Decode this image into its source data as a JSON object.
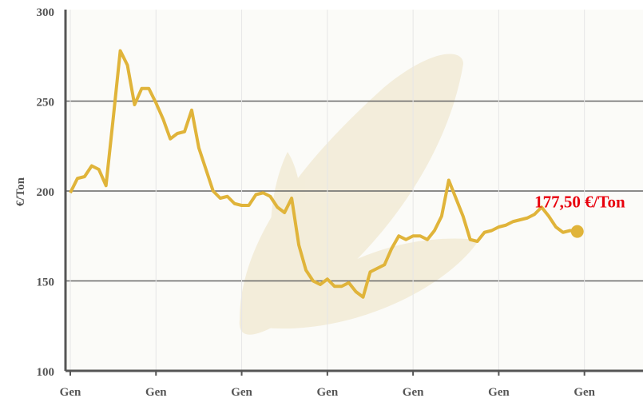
{
  "chart_data": {
    "type": "line",
    "y_label": "€/Ton",
    "annotation": "177,50 €/Ton",
    "categories": [
      "Gen",
      null,
      null,
      null,
      null,
      null,
      null,
      null,
      null,
      null,
      null,
      null,
      "Gen",
      null,
      null,
      null,
      null,
      null,
      null,
      null,
      null,
      null,
      null,
      null,
      "Gen",
      null,
      null,
      null,
      null,
      null,
      null,
      null,
      null,
      null,
      null,
      null,
      "Gen",
      null,
      null,
      null,
      null,
      null,
      null,
      null,
      null,
      null,
      null,
      null,
      "Gen",
      null,
      null,
      null,
      null,
      null,
      null,
      null,
      null,
      null,
      null,
      null,
      "Gen",
      null,
      null,
      null,
      null,
      null,
      null,
      null,
      null,
      null,
      null,
      null,
      "Gen"
    ],
    "values": [
      199,
      207,
      208,
      214,
      212,
      203,
      240,
      278,
      270,
      248,
      257,
      257,
      249,
      240,
      229,
      232,
      233,
      245,
      224,
      212,
      200,
      196,
      197,
      193,
      192,
      192,
      198,
      199,
      197,
      191,
      188,
      196,
      170,
      156,
      150,
      148,
      151,
      147,
      147,
      149,
      144,
      141,
      155,
      157,
      159,
      168,
      175,
      173,
      175,
      175,
      173,
      178,
      186,
      206,
      196,
      186,
      173,
      172,
      177,
      178,
      180,
      181,
      183,
      184,
      185,
      187,
      191,
      186,
      180,
      177,
      178,
      177.5,
      null
    ],
    "color": "#e0b43a",
    "annotation_color": "#e8000d",
    "ylim": [
      100,
      300
    ],
    "yticks": [
      100,
      150,
      200,
      250,
      300
    ],
    "grid": true
  }
}
